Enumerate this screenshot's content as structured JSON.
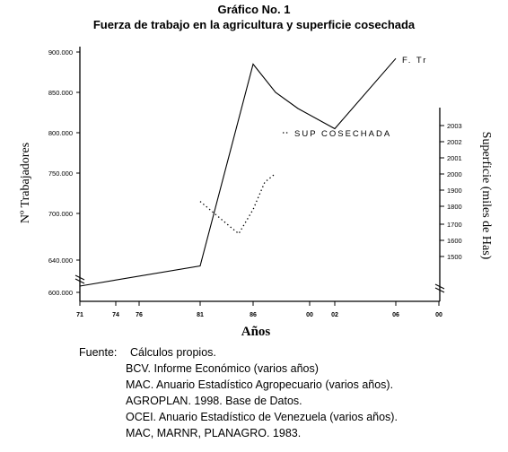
{
  "chart_data": {
    "type": "line",
    "title": "Gráfico No. 1",
    "subtitle": "Fuerza de trabajo en la agricultura y superficie cosechada",
    "xlabel": "Años",
    "ylabel_left": "Nº Trabajadores",
    "ylabel_right": "Superficie (miles de Has)",
    "x_ticks": [
      "71",
      "74",
      "76",
      "81",
      "86",
      "00",
      "02",
      "06",
      "00"
    ],
    "y_left_ticks": [
      "900.000",
      "850.000",
      "800.000",
      "750.000",
      "700.000",
      "640.000",
      "600.000"
    ],
    "y_right_ticks": [
      "2003",
      "2002",
      "2001",
      "2000",
      "1900",
      "1800",
      "1700",
      "1600",
      "1500"
    ],
    "series": [
      {
        "name": "F. Tr",
        "style": "solid",
        "x": [
          "71",
          "81",
          "86",
          "88",
          "91",
          "02",
          "06"
        ],
        "values": [
          610000,
          635000,
          885000,
          850000,
          830000,
          805000,
          892000
        ]
      },
      {
        "name": "SUP COSECHADA",
        "style": "dotted",
        "x": [
          "81",
          "84",
          "85",
          "86",
          "87",
          "88"
        ],
        "values": [
          1830,
          1680,
          1630,
          1780,
          1950,
          2005
        ]
      }
    ],
    "grid": false,
    "legend": "inline labels at line ends"
  },
  "source": {
    "label": "Fuente:",
    "lines": [
      "Cálculos propios.",
      "BCV. Informe Económico (varios años)",
      "MAC. Anuario Estadístico Agropecuario (varios años).",
      "AGROPLAN. 1998. Base de Datos.",
      "OCEI. Anuario Estadístico de Venezuela (varios años).",
      "MAC, MARNR, PLANAGRO. 1983."
    ]
  }
}
